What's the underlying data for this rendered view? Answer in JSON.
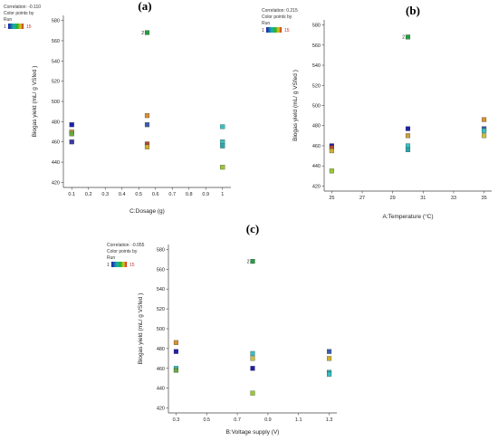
{
  "chart_data": [
    {
      "id": "a",
      "type": "scatter",
      "panel_label": "(a)",
      "correlation": "Correlation: -0.110",
      "legend_title_1": "Color points by",
      "legend_title_2": "Run",
      "run_min": "1",
      "run_max": "15",
      "xlabel": "C:Dosage (g)",
      "ylabel": "Biogas yield (mL/ g VSfed )",
      "xlim": [
        0.05,
        1.05
      ],
      "ylim": [
        415,
        585
      ],
      "xticks": [
        0.1,
        0.2,
        0.3,
        0.4,
        0.5,
        0.6,
        0.7,
        0.8,
        0.9,
        1
      ],
      "xtick_labels": [
        "0.1",
        "0.2",
        "0.3",
        "0.4",
        "0.5",
        "0.6",
        "0.7",
        "0.8",
        "0.9",
        "1"
      ],
      "yticks": [
        420,
        440,
        460,
        480,
        500,
        520,
        540,
        560,
        580
      ],
      "points": [
        {
          "x": 0.1,
          "y": 477,
          "color": "#1f1fa8"
        },
        {
          "x": 0.1,
          "y": 470,
          "color": "#c8a040"
        },
        {
          "x": 0.1,
          "y": 468,
          "color": "#6aa840"
        },
        {
          "x": 0.1,
          "y": 460,
          "color": "#3a3aa0"
        },
        {
          "x": 0.55,
          "y": 568,
          "color": "#22a040",
          "label": "2"
        },
        {
          "x": 0.55,
          "y": 486,
          "color": "#d89030"
        },
        {
          "x": 0.55,
          "y": 477,
          "color": "#3a5cb0"
        },
        {
          "x": 0.55,
          "y": 458,
          "color": "#b04a30"
        },
        {
          "x": 0.55,
          "y": 455,
          "color": "#d0b030"
        },
        {
          "x": 1,
          "y": 475,
          "color": "#36c0c0"
        },
        {
          "x": 1,
          "y": 460,
          "color": "#36c0c0"
        },
        {
          "x": 1,
          "y": 456,
          "color": "#2aa8b0"
        },
        {
          "x": 1,
          "y": 435,
          "color": "#98c830"
        }
      ]
    },
    {
      "id": "b",
      "type": "scatter",
      "panel_label": "(b)",
      "correlation": "Correlation: 0.215",
      "legend_title_1": "Color points by",
      "legend_title_2": "Run",
      "run_min": "1",
      "run_max": "15",
      "xlabel": "A:Temperature (°C)",
      "ylabel": "Biogas yield (mL/ g VSfed )",
      "xlim": [
        24.5,
        35.5
      ],
      "ylim": [
        415,
        585
      ],
      "xticks": [
        25,
        27,
        29,
        31,
        33,
        35
      ],
      "xtick_labels": [
        "25",
        "27",
        "29",
        "31",
        "33",
        "35"
      ],
      "yticks": [
        420,
        440,
        460,
        480,
        500,
        520,
        540,
        560,
        580
      ],
      "points": [
        {
          "x": 25,
          "y": 460,
          "color": "#1f1fa8"
        },
        {
          "x": 25,
          "y": 458,
          "color": "#b04a30"
        },
        {
          "x": 25,
          "y": 455,
          "color": "#d0b030"
        },
        {
          "x": 25,
          "y": 435,
          "color": "#98c830"
        },
        {
          "x": 30,
          "y": 568,
          "color": "#22a040",
          "label": "2"
        },
        {
          "x": 30,
          "y": 477,
          "color": "#1f1fa8"
        },
        {
          "x": 30,
          "y": 470,
          "color": "#c8a040"
        },
        {
          "x": 30,
          "y": 460,
          "color": "#36c0c0"
        },
        {
          "x": 30,
          "y": 456,
          "color": "#2aa8b0"
        },
        {
          "x": 35,
          "y": 486,
          "color": "#d89030"
        },
        {
          "x": 35,
          "y": 477,
          "color": "#3a5cb0"
        },
        {
          "x": 35,
          "y": 475,
          "color": "#36c0c0"
        },
        {
          "x": 35,
          "y": 470,
          "color": "#c8c040"
        }
      ]
    },
    {
      "id": "c",
      "type": "scatter",
      "panel_label": "(c)",
      "correlation": "Correlation: -0.055",
      "legend_title_1": "Color points by",
      "legend_title_2": "Run",
      "run_min": "1",
      "run_max": "15",
      "xlabel": "B:Voltage supply (V)",
      "ylabel": "Biogas yield (mL/ g VSfed )",
      "xlim": [
        0.25,
        1.35
      ],
      "ylim": [
        415,
        585
      ],
      "xticks": [
        0.3,
        0.5,
        0.7,
        0.9,
        1.1,
        1.3
      ],
      "xtick_labels": [
        "0.3",
        "0.5",
        "0.7",
        "0.9",
        "1.1",
        "1.3"
      ],
      "yticks": [
        420,
        440,
        460,
        480,
        500,
        520,
        540,
        560,
        580
      ],
      "points": [
        {
          "x": 0.3,
          "y": 486,
          "color": "#d89030"
        },
        {
          "x": 0.3,
          "y": 477,
          "color": "#1f1fa8"
        },
        {
          "x": 0.3,
          "y": 460,
          "color": "#36c0c0"
        },
        {
          "x": 0.3,
          "y": 458,
          "color": "#6aa840"
        },
        {
          "x": 0.8,
          "y": 568,
          "color": "#22a040",
          "label": "2"
        },
        {
          "x": 0.8,
          "y": 475,
          "color": "#36c0c0"
        },
        {
          "x": 0.8,
          "y": 470,
          "color": "#c8c040"
        },
        {
          "x": 0.8,
          "y": 460,
          "color": "#1f1fa8"
        },
        {
          "x": 0.8,
          "y": 435,
          "color": "#98c830"
        },
        {
          "x": 1.3,
          "y": 477,
          "color": "#3a5cb0"
        },
        {
          "x": 1.3,
          "y": 470,
          "color": "#d0b030"
        },
        {
          "x": 1.3,
          "y": 456,
          "color": "#2aa8b0"
        },
        {
          "x": 1.3,
          "y": 454,
          "color": "#36c0c0"
        }
      ]
    }
  ]
}
